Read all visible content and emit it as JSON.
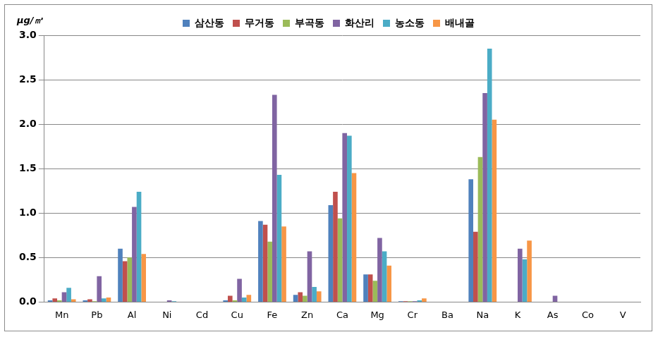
{
  "chart_data": {
    "type": "bar",
    "y_label": "μg/㎥",
    "categories": [
      "Mn",
      "Pb",
      "Al",
      "Ni",
      "Cd",
      "Cu",
      "Fe",
      "Zn",
      "Ca",
      "Mg",
      "Cr",
      "Ba",
      "Na",
      "K",
      "As",
      "Co",
      "V"
    ],
    "series": [
      {
        "name": "삼산동",
        "color": "#4F81BD",
        "values": [
          0.02,
          0.02,
          0.6,
          0.0,
          0.0,
          0.02,
          0.91,
          0.08,
          1.09,
          0.31,
          0.01,
          0.0,
          1.38,
          0.0,
          0.0,
          0.0,
          0.0
        ]
      },
      {
        "name": "무거동",
        "color": "#C0504D",
        "values": [
          0.04,
          0.03,
          0.46,
          0.0,
          0.0,
          0.07,
          0.87,
          0.11,
          1.24,
          0.31,
          0.01,
          0.0,
          0.79,
          0.0,
          0.0,
          0.0,
          0.0
        ]
      },
      {
        "name": "부곡동",
        "color": "#9BBB59",
        "values": [
          0.02,
          0.01,
          0.5,
          0.0,
          0.0,
          0.02,
          0.68,
          0.07,
          0.94,
          0.24,
          0.01,
          0.0,
          1.63,
          0.0,
          0.0,
          0.0,
          0.0
        ]
      },
      {
        "name": "화산리",
        "color": "#8064A2",
        "values": [
          0.11,
          0.29,
          1.07,
          0.02,
          0.0,
          0.26,
          2.33,
          0.57,
          1.9,
          0.72,
          0.01,
          0.0,
          2.35,
          0.6,
          0.07,
          0.0,
          0.0
        ]
      },
      {
        "name": "농소동",
        "color": "#4BACC6",
        "values": [
          0.16,
          0.04,
          1.24,
          0.01,
          0.0,
          0.05,
          1.43,
          0.17,
          1.87,
          0.57,
          0.02,
          0.0,
          2.85,
          0.48,
          0.0,
          0.0,
          0.0
        ]
      },
      {
        "name": "배내골",
        "color": "#F79646",
        "values": [
          0.03,
          0.05,
          0.54,
          0.0,
          0.0,
          0.08,
          0.85,
          0.12,
          1.45,
          0.41,
          0.04,
          0.0,
          2.05,
          0.69,
          0.0,
          0.0,
          0.0
        ]
      }
    ],
    "ylim": [
      0,
      3.0
    ],
    "yticks": [
      {
        "value": 0,
        "label": "0.0"
      },
      {
        "value": 0.5,
        "label": "0.5"
      },
      {
        "value": 1,
        "label": "1.0"
      },
      {
        "value": 1.5,
        "label": "1.5"
      },
      {
        "value": 2,
        "label": "2.0"
      },
      {
        "value": 2.5,
        "label": "2.5"
      },
      {
        "value": 3,
        "label": "3.0"
      }
    ],
    "grid": true,
    "legend": "top"
  }
}
